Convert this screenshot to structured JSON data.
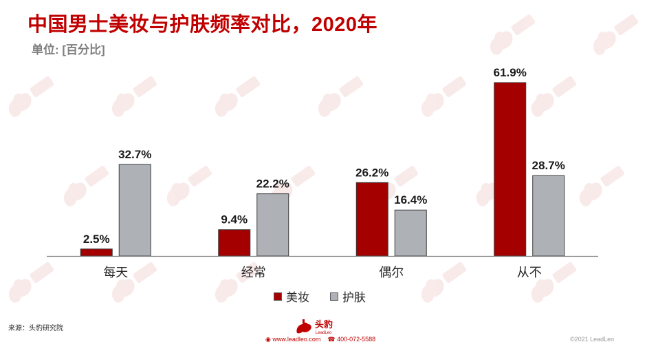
{
  "title": "中国男士美妆与护肤频率对比，2020年",
  "subtitle": "单位: [百分比]",
  "legend": {
    "series_1": "美妆",
    "series_2": "护肤"
  },
  "colors": {
    "title": "#c00000",
    "series_1": "#a50000",
    "series_2": "#aeb2b6",
    "bar_border": "#3b3b3b",
    "axis": "#7f7f7f"
  },
  "chart_data": {
    "type": "bar",
    "title": "中国男士美妆与护肤频率对比，2020年",
    "ylabel": "单位: [百分比]",
    "categories": [
      "每天",
      "经常",
      "偶尔",
      "从不"
    ],
    "series": [
      {
        "name": "美妆",
        "values": [
          2.5,
          9.4,
          26.2,
          61.9
        ],
        "labels": [
          "2.5%",
          "9.4%",
          "26.2%",
          "61.9%"
        ]
      },
      {
        "name": "护肤",
        "values": [
          32.7,
          22.2,
          16.4,
          28.7
        ],
        "labels": [
          "32.7%",
          "22.2%",
          "16.4%",
          "28.7%"
        ]
      }
    ],
    "ylim": [
      0,
      62
    ],
    "grid": false,
    "legend_position": "bottom"
  },
  "footer": {
    "source": "来源：头豹研究院",
    "logo_text": "头豹",
    "logo_subtext": "LeadLeo",
    "website": "www.leadleo.com",
    "phone": "400-072-5588",
    "copyright": "©2021 LeadLeo"
  }
}
